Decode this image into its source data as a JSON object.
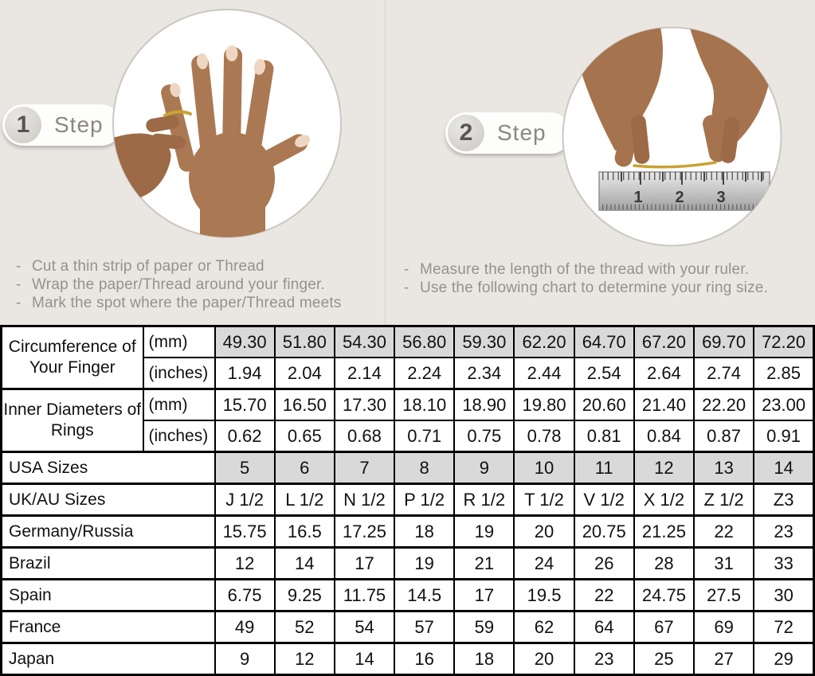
{
  "colors": {
    "page_bg": "#eae7e2",
    "shaded_cell": "#d9d9d9",
    "table_border": "#000000",
    "gold_thread": "#c9a233",
    "badge_text": "#8b8781"
  },
  "steps": [
    {
      "number": "1",
      "label": "Step",
      "instructions": [
        "Cut a thin strip of paper or Thread",
        "Wrap the paper/Thread around your finger.",
        "Mark the spot where the paper/Thread meets"
      ]
    },
    {
      "number": "2",
      "label": "Step",
      "instructions": [
        "Measure the length of the thread with your ruler.",
        "Use the following chart to determine your ring size."
      ]
    }
  ],
  "step2_photo": {
    "ruler_numbers": [
      "1",
      "2",
      "3"
    ]
  },
  "table": {
    "rows": [
      {
        "label": "Circumference of Your Finger",
        "label_rowspan": 2,
        "unit": "(mm)",
        "shaded": true,
        "values": [
          "49.30",
          "51.80",
          "54.30",
          "56.80",
          "59.30",
          "62.20",
          "64.70",
          "67.20",
          "69.70",
          "72.20"
        ]
      },
      {
        "unit": "(inches)",
        "shaded": false,
        "values": [
          "1.94",
          "2.04",
          "2.14",
          "2.24",
          "2.34",
          "2.44",
          "2.54",
          "2.64",
          "2.74",
          "2.85"
        ]
      },
      {
        "label": "Inner Diameters of Rings",
        "label_rowspan": 2,
        "unit": "(mm)",
        "shaded": false,
        "values": [
          "15.70",
          "16.50",
          "17.30",
          "18.10",
          "18.90",
          "19.80",
          "20.60",
          "21.40",
          "22.20",
          "23.00"
        ]
      },
      {
        "unit": "(inches)",
        "shaded": false,
        "values": [
          "0.62",
          "0.65",
          "0.68",
          "0.71",
          "0.75",
          "0.78",
          "0.81",
          "0.84",
          "0.87",
          "0.91"
        ]
      },
      {
        "label": "USA Sizes",
        "label_colspan": 2,
        "shaded": true,
        "values": [
          "5",
          "6",
          "7",
          "8",
          "9",
          "10",
          "11",
          "12",
          "13",
          "14"
        ]
      },
      {
        "label": "UK/AU Sizes",
        "label_colspan": 2,
        "shaded": false,
        "values": [
          "J 1/2",
          "L 1/2",
          "N 1/2",
          "P 1/2",
          "R 1/2",
          "T 1/2",
          "V 1/2",
          "X 1/2",
          "Z 1/2",
          "Z3"
        ]
      },
      {
        "label": "Germany/Russia",
        "label_colspan": 2,
        "shaded": false,
        "values": [
          "15.75",
          "16.5",
          "17.25",
          "18",
          "19",
          "20",
          "20.75",
          "21.25",
          "22",
          "23"
        ]
      },
      {
        "label": "Brazil",
        "label_colspan": 2,
        "shaded": false,
        "values": [
          "12",
          "14",
          "17",
          "19",
          "21",
          "24",
          "26",
          "28",
          "31",
          "33"
        ]
      },
      {
        "label": "Spain",
        "label_colspan": 2,
        "shaded": false,
        "values": [
          "6.75",
          "9.25",
          "11.75",
          "14.5",
          "17",
          "19.5",
          "22",
          "24.75",
          "27.5",
          "30"
        ]
      },
      {
        "label": "France",
        "label_colspan": 2,
        "shaded": false,
        "values": [
          "49",
          "52",
          "54",
          "57",
          "59",
          "62",
          "64",
          "67",
          "69",
          "72"
        ]
      },
      {
        "label": "Japan",
        "label_colspan": 2,
        "shaded": false,
        "values": [
          "9",
          "12",
          "14",
          "16",
          "18",
          "20",
          "23",
          "25",
          "27",
          "29"
        ]
      }
    ]
  }
}
